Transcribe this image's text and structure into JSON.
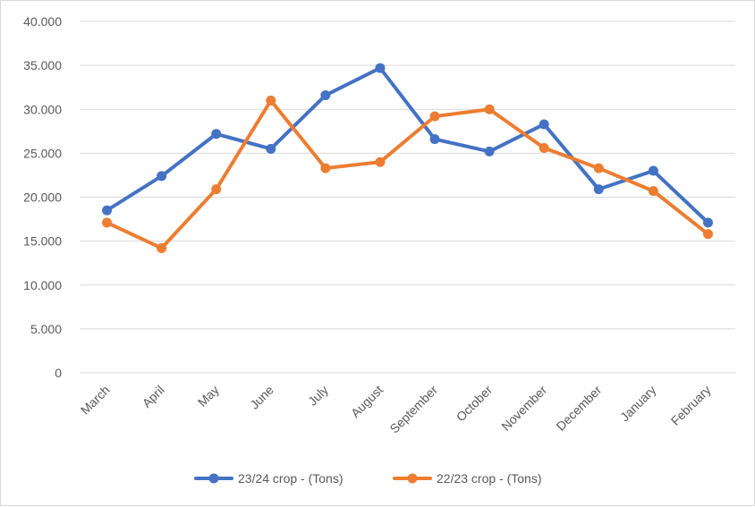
{
  "chart_data": {
    "type": "line",
    "categories": [
      "March",
      "April",
      "May",
      "June",
      "July",
      "August",
      "September",
      "October",
      "November",
      "December",
      "January",
      "February"
    ],
    "series": [
      {
        "name": "23/24 crop - (Tons)",
        "color": "#4472C4",
        "values": [
          18500,
          22400,
          27200,
          25500,
          31600,
          34700,
          26600,
          25200,
          28300,
          20900,
          23000,
          17100
        ]
      },
      {
        "name": "22/23 crop - (Tons)",
        "color": "#ED7D31",
        "values": [
          17100,
          14200,
          20900,
          31000,
          23300,
          24000,
          29200,
          30000,
          25600,
          23300,
          20700,
          15800
        ]
      }
    ],
    "ylim": [
      0,
      40000
    ],
    "yticks": [
      0,
      5000,
      10000,
      15000,
      20000,
      25000,
      30000,
      35000,
      40000
    ],
    "ytick_labels": [
      "0",
      "5.000",
      "10.000",
      "15.000",
      "20.000",
      "25.000",
      "30.000",
      "35.000",
      "40.000"
    ],
    "grid": true,
    "legend_position": "bottom",
    "title": "",
    "xlabel": "",
    "ylabel": ""
  }
}
